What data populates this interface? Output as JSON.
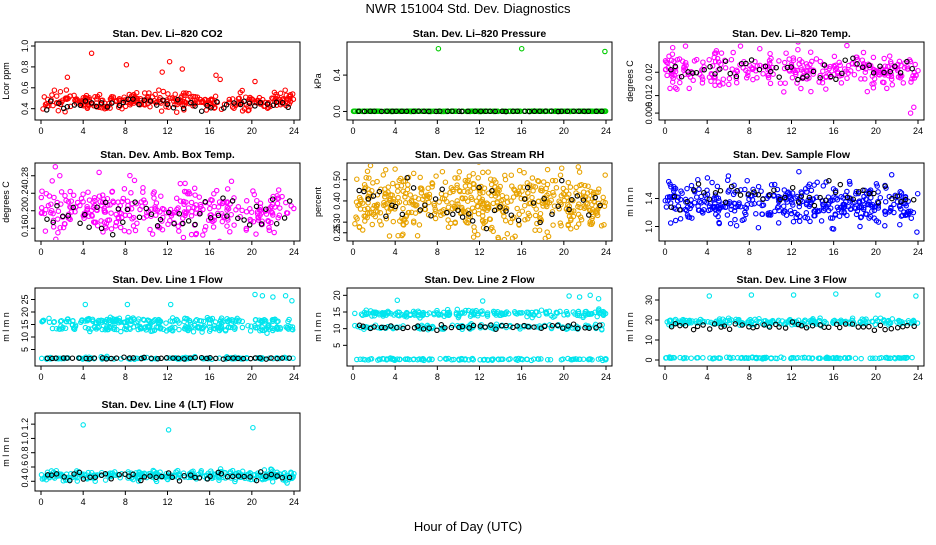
{
  "figure": {
    "title": "NWR  151004  Std. Dev. Diagnostics",
    "xlabel": "Hour of Day (UTC)"
  },
  "chart_data": [
    {
      "type": "scatter",
      "title": "Stan. Dev. Li–820 CO2",
      "ylabel": "Lcor ppm",
      "xlim": [
        0,
        24
      ],
      "ylim": [
        0.33,
        1.0
      ],
      "xticks": [
        "0",
        "4",
        "8",
        "12",
        "16",
        "20",
        "24"
      ],
      "yticks": [
        {
          "v": 0.4,
          "label": "0.4"
        },
        {
          "v": 0.6,
          "label": "0.6"
        },
        {
          "v": 0.8,
          "label": "0.8"
        },
        {
          "v": 1.0,
          "label": "1.0"
        }
      ],
      "series": [
        {
          "name": "all",
          "color": "#ff0000",
          "center": 0.47,
          "spread": 0.04,
          "n": 300,
          "outliers": [
            [
              4.8,
              0.93
            ],
            [
              8.1,
              0.82
            ],
            [
              12.2,
              0.85
            ],
            [
              13.4,
              0.78
            ],
            [
              16.6,
              0.72
            ],
            [
              17.0,
              0.68
            ],
            [
              20.3,
              0.66
            ],
            [
              2.5,
              0.7
            ],
            [
              11.5,
              0.75
            ]
          ]
        },
        {
          "name": "hourly",
          "color": "#000000",
          "center": 0.44,
          "spread": 0.03,
          "n": 45
        }
      ]
    },
    {
      "type": "scatter",
      "title": "Stan. Dev. Li–820 Pressure",
      "ylabel": "kPa",
      "xlim": [
        0,
        24
      ],
      "ylim": [
        -0.05,
        0.72
      ],
      "xticks": [
        "0",
        "4",
        "8",
        "12",
        "16",
        "20",
        "24"
      ],
      "yticks": [
        {
          "v": 0.0,
          "label": "0.0"
        },
        {
          "v": 0.4,
          "label": "0.4"
        }
      ],
      "series": [
        {
          "name": "all",
          "color": "#00cc00",
          "center": 0.002,
          "spread": 0.001,
          "n": 260,
          "outliers": [
            [
              8.1,
              0.69
            ],
            [
              16.0,
              0.69
            ],
            [
              23.9,
              0.66
            ]
          ]
        },
        {
          "name": "hourly",
          "color": "#000000",
          "center": 0.002,
          "spread": 0.001,
          "n": 45
        }
      ]
    },
    {
      "type": "scatter",
      "title": "Stan. Dev. Li–820 Temp.",
      "ylabel": "degrees C",
      "xlim": [
        0,
        24
      ],
      "ylim": [
        0.005,
        0.029
      ],
      "xticks": [
        "0",
        "4",
        "8",
        "12",
        "16",
        "20",
        "24"
      ],
      "yticks": [
        {
          "v": 0.006,
          "label": "0.006"
        },
        {
          "v": 0.012,
          "label": "0.012"
        },
        {
          "v": 0.02,
          "label": "0.02"
        }
      ],
      "series": [
        {
          "name": "all",
          "color": "#ff00ff",
          "center": 0.021,
          "spread": 0.003,
          "n": 300,
          "outliers": [
            [
              23.3,
              0.006
            ],
            [
              23.6,
              0.008
            ]
          ]
        },
        {
          "name": "hourly",
          "color": "#000000",
          "center": 0.021,
          "spread": 0.002,
          "n": 45
        }
      ]
    },
    {
      "type": "scatter",
      "title": "Stan. Dev. Amb. Box Temp.",
      "ylabel": "degrees C",
      "xlim": [
        0,
        24
      ],
      "ylim": [
        0.14,
        0.3
      ],
      "xticks": [
        "0",
        "4",
        "8",
        "12",
        "16",
        "20",
        "24"
      ],
      "yticks": [
        {
          "v": 0.16,
          "label": "0.16"
        },
        {
          "v": 0.2,
          "label": "0.20"
        },
        {
          "v": 0.24,
          "label": "0.24"
        },
        {
          "v": 0.28,
          "label": "0.28"
        }
      ],
      "series": [
        {
          "name": "all",
          "color": "#ff00ff",
          "center": 0.2,
          "spread": 0.03,
          "n": 340
        },
        {
          "name": "hourly",
          "color": "#000000",
          "center": 0.19,
          "spread": 0.02,
          "n": 45
        }
      ]
    },
    {
      "type": "scatter",
      "title": "Stan. Dev. Gas Stream RH",
      "ylabel": "percent",
      "xlim": [
        0,
        24
      ],
      "ylim": [
        0.23,
        0.56
      ],
      "xticks": [
        "0",
        "4",
        "8",
        "12",
        "16",
        "20",
        "24"
      ],
      "yticks": [
        {
          "v": 0.25,
          "label": "0.25"
        },
        {
          "v": 0.3,
          "label": "0.30"
        },
        {
          "v": 0.4,
          "label": "0.40"
        },
        {
          "v": 0.5,
          "label": "0.50"
        }
      ],
      "series": [
        {
          "name": "all",
          "color": "#e8a300",
          "center": 0.39,
          "spread": 0.07,
          "n": 520
        },
        {
          "name": "hourly",
          "color": "#000000",
          "center": 0.39,
          "spread": 0.05,
          "n": 45
        }
      ]
    },
    {
      "type": "scatter",
      "title": "Stan. Dev. Sample Flow",
      "ylabel": "m l m n",
      "xlim": [
        0,
        24
      ],
      "ylim": [
        0.85,
        1.85
      ],
      "xticks": [
        "0",
        "4",
        "8",
        "12",
        "16",
        "20",
        "24"
      ],
      "yticks": [
        {
          "v": 1.0,
          "label": "1.0"
        },
        {
          "v": 1.4,
          "label": "1.4"
        }
      ],
      "series": [
        {
          "name": "all",
          "color": "#0000ff",
          "center": 1.33,
          "spread": 0.14,
          "n": 400,
          "outliers": [
            [
              23.9,
              0.92
            ],
            [
              18.5,
              1.0
            ]
          ]
        },
        {
          "name": "hourly",
          "color": "#000000",
          "center": 1.45,
          "spread": 0.09,
          "n": 45
        }
      ]
    },
    {
      "type": "scatter",
      "title": "Stan. Dev. Line 1 Flow",
      "ylabel": "m l m n",
      "xlim": [
        0,
        24
      ],
      "ylim": [
        0,
        28
      ],
      "xticks": [
        "0",
        "4",
        "8",
        "12",
        "16",
        "20",
        "24"
      ],
      "yticks": [
        {
          "v": 5,
          "label": "5"
        },
        {
          "v": 10,
          "label": "10"
        },
        {
          "v": 15,
          "label": "15"
        },
        {
          "v": 20,
          "label": "20"
        },
        {
          "v": 25,
          "label": "25"
        }
      ],
      "series": [
        {
          "name": "upper",
          "color": "#00e5ee",
          "center": 16.5,
          "spread": 0.6,
          "n": 160,
          "outliers": [
            [
              20.3,
              27
            ],
            [
              21.0,
              26.5
            ],
            [
              22.0,
              26
            ],
            [
              23.2,
              26.5
            ],
            [
              23.8,
              24.5
            ],
            [
              4.2,
              23
            ],
            [
              8.2,
              23
            ],
            [
              12.3,
              23
            ]
          ]
        },
        {
          "name": "lower",
          "color": "#00e5ee",
          "center": 13.5,
          "spread": 0.6,
          "n": 160
        },
        {
          "name": "base",
          "color": "#00e5ee",
          "center": 1.5,
          "spread": 0.2,
          "n": 120
        },
        {
          "name": "hourly",
          "color": "#000000",
          "center": 1.5,
          "spread": 0.15,
          "n": 45
        }
      ]
    },
    {
      "type": "scatter",
      "title": "Stan. Dev. Line 2 Flow",
      "ylabel": "m l m n",
      "xlim": [
        0,
        24
      ],
      "ylim": [
        0,
        21
      ],
      "xticks": [
        "0",
        "4",
        "8",
        "12",
        "16",
        "20",
        "24"
      ],
      "yticks": [
        {
          "v": 5,
          "label": "5"
        },
        {
          "v": 10,
          "label": "10"
        },
        {
          "v": 15,
          "label": "15"
        },
        {
          "v": 20,
          "label": "20"
        }
      ],
      "series": [
        {
          "name": "upper",
          "color": "#00e5ee",
          "center": 14.5,
          "spread": 0.5,
          "n": 200,
          "outliers": [
            [
              4.2,
              18.5
            ],
            [
              12.3,
              18.3
            ],
            [
              20.5,
              19.8
            ],
            [
              21.5,
              19.5
            ],
            [
              22.5,
              20
            ],
            [
              23.3,
              19
            ]
          ]
        },
        {
          "name": "mid",
          "color": "#00e5ee",
          "center": 10.5,
          "spread": 0.4,
          "n": 120
        },
        {
          "name": "base",
          "color": "#00e5ee",
          "center": 0.8,
          "spread": 0.15,
          "n": 120
        },
        {
          "name": "hourly",
          "color": "#000000",
          "center": 10.5,
          "spread": 0.4,
          "n": 45
        }
      ]
    },
    {
      "type": "scatter",
      "title": "Stan. Dev. Line 3 Flow",
      "ylabel": "m l m n",
      "xlim": [
        0,
        24
      ],
      "ylim": [
        -1,
        34
      ],
      "xticks": [
        "0",
        "4",
        "8",
        "12",
        "16",
        "20",
        "24"
      ],
      "yticks": [
        {
          "v": 0,
          "label": "0"
        },
        {
          "v": 10,
          "label": "10"
        },
        {
          "v": 20,
          "label": "20"
        },
        {
          "v": 30,
          "label": "30"
        }
      ],
      "series": [
        {
          "name": "upper",
          "color": "#00e5ee",
          "center": 19,
          "spread": 0.8,
          "n": 220,
          "outliers": [
            [
              4.2,
              32
            ],
            [
              8.2,
              32.5
            ],
            [
              12.2,
              32.5
            ],
            [
              16.2,
              33
            ],
            [
              20.2,
              32.5
            ],
            [
              23.8,
              32
            ]
          ]
        },
        {
          "name": "base",
          "color": "#00e5ee",
          "center": 1,
          "spread": 0.2,
          "n": 120
        },
        {
          "name": "hourly",
          "color": "#000000",
          "center": 17,
          "spread": 0.8,
          "n": 45
        }
      ]
    },
    {
      "type": "scatter",
      "title": "Stan. Dev. Line 4 (LT) Flow",
      "ylabel": "m l m n",
      "xlim": [
        0,
        24
      ],
      "ylim": [
        0.32,
        1.3
      ],
      "xticks": [
        "0",
        "4",
        "8",
        "12",
        "16",
        "20",
        "24"
      ],
      "yticks": [
        {
          "v": 0.4,
          "label": "0.4"
        },
        {
          "v": 0.6,
          "label": "0.6"
        },
        {
          "v": 0.8,
          "label": "0.8"
        },
        {
          "v": 1.0,
          "label": "1.0"
        },
        {
          "v": 1.2,
          "label": "1.2"
        }
      ],
      "series": [
        {
          "name": "all",
          "color": "#00e5ee",
          "center": 0.48,
          "spread": 0.035,
          "n": 300,
          "outliers": [
            [
              4.0,
              1.19
            ],
            [
              12.1,
              1.12
            ],
            [
              20.1,
              1.15
            ]
          ]
        },
        {
          "name": "hourly",
          "color": "#000000",
          "center": 0.47,
          "spread": 0.03,
          "n": 45
        }
      ]
    }
  ]
}
